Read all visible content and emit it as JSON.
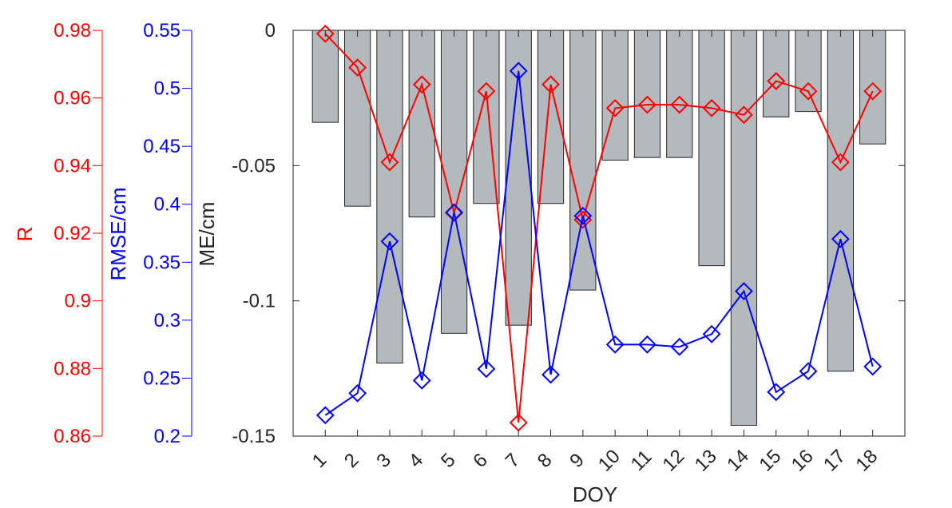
{
  "chart_data": {
    "type": "bar",
    "xlabel": "DOY",
    "categories": [
      "1",
      "2",
      "3",
      "4",
      "5",
      "6",
      "7",
      "8",
      "9",
      "10",
      "11",
      "12",
      "13",
      "14",
      "15",
      "16",
      "17",
      "18"
    ],
    "axes": {
      "me": {
        "label": "ME/cm",
        "ylim": [
          -0.15,
          0
        ],
        "ticks": [
          "0",
          "-0.05",
          "-0.1",
          "-0.15"
        ],
        "tick_values": [
          0,
          -0.05,
          -0.1,
          -0.15
        ],
        "color": "#000000"
      },
      "rmse": {
        "label": "RMSE/cm",
        "ylim": [
          0.2,
          0.55
        ],
        "ticks": [
          "0.55",
          "0.5",
          "0.45",
          "0.4",
          "0.35",
          "0.3",
          "0.25",
          "0.2"
        ],
        "tick_values": [
          0.55,
          0.5,
          0.45,
          0.4,
          0.35,
          0.3,
          0.25,
          0.2
        ],
        "color": "#0000ff"
      },
      "r": {
        "label": "R",
        "ylim": [
          0.86,
          0.98
        ],
        "ticks": [
          "0.98",
          "0.96",
          "0.94",
          "0.92",
          "0.9",
          "0.88",
          "0.86"
        ],
        "tick_values": [
          0.98,
          0.96,
          0.94,
          0.92,
          0.9,
          0.88,
          0.86
        ],
        "color": "#ff0000"
      }
    },
    "series": [
      {
        "axis": "me",
        "type": "bar",
        "color": "#b4b9bd",
        "values": [
          -0.034,
          -0.065,
          -0.123,
          -0.069,
          -0.112,
          -0.064,
          -0.109,
          -0.064,
          -0.096,
          -0.048,
          -0.047,
          -0.047,
          -0.087,
          -0.146,
          -0.032,
          -0.03,
          -0.126,
          -0.042
        ]
      },
      {
        "axis": "r",
        "type": "line",
        "marker": "diamond",
        "color": "#ff0000",
        "values": [
          0.979,
          0.969,
          0.941,
          0.964,
          0.926,
          0.962,
          0.864,
          0.964,
          0.924,
          0.957,
          0.958,
          0.958,
          0.957,
          0.955,
          0.965,
          0.962,
          0.941,
          0.962
        ]
      },
      {
        "axis": "rmse",
        "type": "line",
        "marker": "diamond",
        "color": "#0000ff",
        "values": [
          0.218,
          0.237,
          0.368,
          0.248,
          0.393,
          0.258,
          0.515,
          0.253,
          0.39,
          0.279,
          0.279,
          0.277,
          0.288,
          0.325,
          0.238,
          0.256,
          0.37,
          0.26
        ]
      }
    ],
    "grid": false
  }
}
